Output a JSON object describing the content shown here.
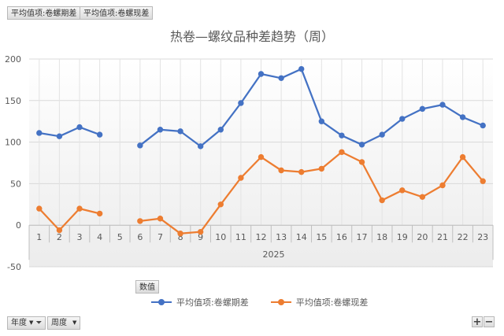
{
  "pivot": {
    "value_fields": [
      "平均值项:卷螺期差",
      "平均值项:卷螺现差"
    ],
    "values_label": "数值",
    "axis_fields": [
      "年度",
      "周度"
    ]
  },
  "colors": {
    "series1": "#4472c4",
    "series2": "#ed7d31",
    "grid": "#d9d9d9",
    "axis": "#bfbfbf"
  },
  "chart_data": {
    "type": "line",
    "title": "热卷—螺纹品种差趋势（周）",
    "x": [
      "1",
      "2",
      "3",
      "4",
      "5",
      "6",
      "7",
      "8",
      "9",
      "10",
      "11",
      "12",
      "13",
      "14",
      "15",
      "16",
      "17",
      "18",
      "19",
      "20",
      "21",
      "22",
      "23"
    ],
    "x_group_label": "2025",
    "ylim": [
      -50,
      200
    ],
    "yticks": [
      "-50",
      "0",
      "50",
      "100",
      "150",
      "200"
    ],
    "grid": true,
    "legend_position": "bottom",
    "series": [
      {
        "name": "平均值项:卷螺期差",
        "values": [
          111,
          107,
          118,
          109,
          null,
          96,
          115,
          113,
          95,
          115,
          147,
          182,
          177,
          188,
          125,
          108,
          97,
          109,
          128,
          140,
          145,
          130,
          120
        ]
      },
      {
        "name": "平均值项:卷螺现差",
        "values": [
          20,
          -6,
          20,
          14,
          null,
          5,
          8,
          -10,
          -8,
          25,
          57,
          82,
          66,
          64,
          68,
          88,
          76,
          30,
          42,
          34,
          48,
          82,
          53
        ]
      }
    ]
  }
}
